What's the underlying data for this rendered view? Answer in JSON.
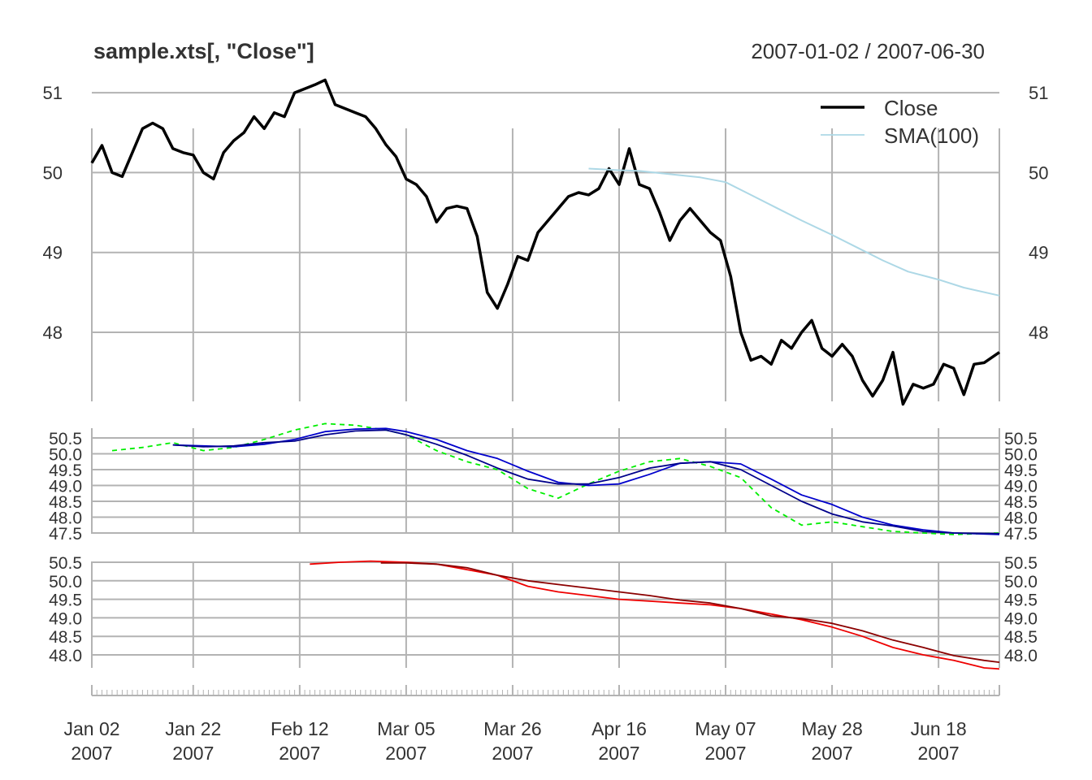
{
  "chart_data": {
    "type": "line",
    "title": "sample.xts[, \"Close\"]",
    "date_range": "2007-01-02 / 2007-06-30",
    "x_ticks": [
      {
        "date": "2007-01-02",
        "label": "Jan 02",
        "year": "2007"
      },
      {
        "date": "2007-01-22",
        "label": "Jan 22",
        "year": "2007"
      },
      {
        "date": "2007-02-12",
        "label": "Feb 12",
        "year": "2007"
      },
      {
        "date": "2007-03-05",
        "label": "Mar 05",
        "year": "2007"
      },
      {
        "date": "2007-03-26",
        "label": "Mar 26",
        "year": "2007"
      },
      {
        "date": "2007-04-16",
        "label": "Apr 16",
        "year": "2007"
      },
      {
        "date": "2007-05-07",
        "label": "May 07",
        "year": "2007"
      },
      {
        "date": "2007-05-28",
        "label": "May 28",
        "year": "2007"
      },
      {
        "date": "2007-06-18",
        "label": "Jun 18",
        "year": "2007"
      }
    ],
    "panels": [
      {
        "name": "main",
        "ylim": [
          47.1,
          51.2
        ],
        "y_ticks": [
          "48",
          "49",
          "50",
          "51"
        ],
        "legend": {
          "position": "top-right",
          "entries": [
            "Close",
            "SMA(100)"
          ]
        },
        "series": [
          {
            "name": "Close",
            "color": "#000000",
            "x": [
              "2007-01-02",
              "2007-01-04",
              "2007-01-06",
              "2007-01-08",
              "2007-01-10",
              "2007-01-12",
              "2007-01-14",
              "2007-01-16",
              "2007-01-18",
              "2007-01-20",
              "2007-01-22",
              "2007-01-24",
              "2007-01-26",
              "2007-01-28",
              "2007-01-30",
              "2007-02-01",
              "2007-02-03",
              "2007-02-05",
              "2007-02-07",
              "2007-02-09",
              "2007-02-11",
              "2007-02-13",
              "2007-02-15",
              "2007-02-17",
              "2007-02-19",
              "2007-02-21",
              "2007-02-23",
              "2007-02-25",
              "2007-02-27",
              "2007-03-01",
              "2007-03-03",
              "2007-03-05",
              "2007-03-07",
              "2007-03-09",
              "2007-03-11",
              "2007-03-13",
              "2007-03-15",
              "2007-03-17",
              "2007-03-19",
              "2007-03-21",
              "2007-03-23",
              "2007-03-25",
              "2007-03-27",
              "2007-03-29",
              "2007-03-31",
              "2007-04-02",
              "2007-04-04",
              "2007-04-06",
              "2007-04-08",
              "2007-04-10",
              "2007-04-12",
              "2007-04-14",
              "2007-04-16",
              "2007-04-18",
              "2007-04-20",
              "2007-04-22",
              "2007-04-24",
              "2007-04-26",
              "2007-04-28",
              "2007-04-30",
              "2007-05-02",
              "2007-05-04",
              "2007-05-06",
              "2007-05-08",
              "2007-05-10",
              "2007-05-12",
              "2007-05-14",
              "2007-05-16",
              "2007-05-18",
              "2007-05-20",
              "2007-05-22",
              "2007-05-24",
              "2007-05-26",
              "2007-05-28",
              "2007-05-30",
              "2007-06-01",
              "2007-06-03",
              "2007-06-05",
              "2007-06-07",
              "2007-06-09",
              "2007-06-11",
              "2007-06-13",
              "2007-06-15",
              "2007-06-17",
              "2007-06-19",
              "2007-06-21",
              "2007-06-23",
              "2007-06-25",
              "2007-06-27",
              "2007-06-30"
            ],
            "values": [
              50.12,
              50.34,
              50.0,
              49.95,
              50.25,
              50.55,
              50.62,
              50.55,
              50.3,
              50.25,
              50.22,
              50.0,
              49.92,
              50.25,
              50.4,
              50.5,
              50.7,
              50.55,
              50.75,
              50.7,
              51.0,
              51.05,
              51.1,
              51.16,
              50.85,
              50.8,
              50.75,
              50.7,
              50.55,
              50.35,
              50.2,
              49.92,
              49.85,
              49.7,
              49.38,
              49.55,
              49.58,
              49.55,
              49.2,
              48.5,
              48.3,
              48.6,
              48.95,
              48.9,
              49.25,
              49.4,
              49.55,
              49.7,
              49.75,
              49.72,
              49.8,
              50.05,
              49.85,
              50.3,
              49.85,
              49.8,
              49.5,
              49.15,
              49.4,
              49.55,
              49.4,
              49.25,
              49.15,
              48.7,
              48.0,
              47.65,
              47.7,
              47.6,
              47.9,
              47.8,
              48.0,
              48.15,
              47.8,
              47.7,
              47.85,
              47.7,
              47.4,
              47.2,
              47.4,
              47.75,
              47.1,
              47.35,
              47.3,
              47.35,
              47.6,
              47.55,
              47.22,
              47.6,
              47.62,
              47.75
            ]
          },
          {
            "name": "SMA(100)",
            "color": "#add8e6",
            "x": [
              "2007-04-10",
              "2007-04-16",
              "2007-04-20",
              "2007-04-26",
              "2007-05-02",
              "2007-05-07",
              "2007-05-12",
              "2007-05-17",
              "2007-05-22",
              "2007-05-28",
              "2007-06-02",
              "2007-06-07",
              "2007-06-12",
              "2007-06-18",
              "2007-06-23",
              "2007-06-30"
            ],
            "values": [
              50.05,
              50.03,
              50.02,
              49.98,
              49.94,
              49.88,
              49.72,
              49.56,
              49.4,
              49.22,
              49.06,
              48.9,
              48.76,
              48.66,
              48.56,
              48.46
            ]
          }
        ]
      },
      {
        "name": "panel2",
        "ylim": [
          47.4,
          50.8
        ],
        "y_ticks": [
          "47.5",
          "48.0",
          "48.5",
          "49.0",
          "49.5",
          "50.0",
          "50.5"
        ],
        "series": [
          {
            "name": "green dashed",
            "color": "#00ee00",
            "dashed": true,
            "x": [
              "2007-01-06",
              "2007-01-12",
              "2007-01-18",
              "2007-01-24",
              "2007-01-30",
              "2007-02-05",
              "2007-02-11",
              "2007-02-17",
              "2007-02-23",
              "2007-03-01",
              "2007-03-05",
              "2007-03-11",
              "2007-03-17",
              "2007-03-23",
              "2007-03-29",
              "2007-04-04",
              "2007-04-10",
              "2007-04-16",
              "2007-04-22",
              "2007-04-28",
              "2007-05-04",
              "2007-05-10",
              "2007-05-16",
              "2007-05-22",
              "2007-05-28",
              "2007-06-03",
              "2007-06-09",
              "2007-06-15",
              "2007-06-21",
              "2007-06-30"
            ],
            "values": [
              50.1,
              50.2,
              50.35,
              50.1,
              50.2,
              50.45,
              50.75,
              50.95,
              50.9,
              50.75,
              50.6,
              50.1,
              49.75,
              49.5,
              48.9,
              48.6,
              49.05,
              49.45,
              49.75,
              49.85,
              49.6,
              49.25,
              48.3,
              47.75,
              47.85,
              47.7,
              47.55,
              47.5,
              47.45,
              47.5
            ]
          },
          {
            "name": "blue",
            "color": "#0000cc",
            "x": [
              "2007-01-18",
              "2007-01-24",
              "2007-01-30",
              "2007-02-05",
              "2007-02-11",
              "2007-02-17",
              "2007-02-23",
              "2007-03-01",
              "2007-03-05",
              "2007-03-11",
              "2007-03-17",
              "2007-03-23",
              "2007-03-29",
              "2007-04-04",
              "2007-04-10",
              "2007-04-16",
              "2007-04-22",
              "2007-04-28",
              "2007-05-04",
              "2007-05-10",
              "2007-05-16",
              "2007-05-22",
              "2007-05-28",
              "2007-06-03",
              "2007-06-09",
              "2007-06-15",
              "2007-06-21",
              "2007-06-30"
            ],
            "values": [
              50.28,
              50.25,
              50.22,
              50.3,
              50.45,
              50.7,
              50.78,
              50.8,
              50.7,
              50.45,
              50.1,
              49.85,
              49.45,
              49.1,
              49.0,
              49.05,
              49.35,
              49.7,
              49.75,
              49.68,
              49.2,
              48.7,
              48.4,
              48.0,
              47.75,
              47.6,
              47.5,
              47.45
            ]
          },
          {
            "name": "dark blue",
            "color": "#00008b",
            "x": [
              "2007-01-18",
              "2007-01-24",
              "2007-01-30",
              "2007-02-05",
              "2007-02-11",
              "2007-02-17",
              "2007-02-23",
              "2007-03-01",
              "2007-03-05",
              "2007-03-11",
              "2007-03-17",
              "2007-03-23",
              "2007-03-29",
              "2007-04-04",
              "2007-04-10",
              "2007-04-16",
              "2007-04-22",
              "2007-04-28",
              "2007-05-04",
              "2007-05-10",
              "2007-05-16",
              "2007-05-22",
              "2007-05-28",
              "2007-06-03",
              "2007-06-09",
              "2007-06-15",
              "2007-06-21",
              "2007-06-30"
            ],
            "values": [
              50.28,
              50.22,
              50.25,
              50.35,
              50.4,
              50.6,
              50.72,
              50.75,
              50.6,
              50.3,
              49.95,
              49.55,
              49.2,
              49.05,
              49.05,
              49.25,
              49.55,
              49.7,
              49.75,
              49.5,
              49.0,
              48.5,
              48.1,
              47.85,
              47.72,
              47.55,
              47.5,
              47.48
            ]
          }
        ]
      },
      {
        "name": "panel3",
        "ylim": [
          47.6,
          50.7
        ],
        "y_ticks": [
          "48.0",
          "48.5",
          "49.0",
          "49.5",
          "50.0",
          "50.5"
        ],
        "series": [
          {
            "name": "red",
            "color": "#ee0000",
            "x": [
              "2007-02-14",
              "2007-02-20",
              "2007-02-26",
              "2007-03-05",
              "2007-03-11",
              "2007-03-17",
              "2007-03-23",
              "2007-03-29",
              "2007-04-04",
              "2007-04-10",
              "2007-04-16",
              "2007-04-22",
              "2007-04-28",
              "2007-05-04",
              "2007-05-10",
              "2007-05-16",
              "2007-05-22",
              "2007-05-28",
              "2007-06-03",
              "2007-06-09",
              "2007-06-15",
              "2007-06-21",
              "2007-06-27",
              "2007-06-30"
            ],
            "values": [
              50.45,
              50.5,
              50.53,
              50.5,
              50.45,
              50.3,
              50.15,
              49.85,
              49.7,
              49.6,
              49.5,
              49.45,
              49.4,
              49.35,
              49.25,
              49.1,
              48.95,
              48.75,
              48.5,
              48.2,
              48.0,
              47.85,
              47.65,
              47.62
            ]
          },
          {
            "name": "dark red",
            "color": "#8b0000",
            "x": [
              "2007-02-28",
              "2007-03-05",
              "2007-03-11",
              "2007-03-17",
              "2007-03-23",
              "2007-03-29",
              "2007-04-04",
              "2007-04-10",
              "2007-04-16",
              "2007-04-22",
              "2007-04-28",
              "2007-05-04",
              "2007-05-10",
              "2007-05-16",
              "2007-05-22",
              "2007-05-28",
              "2007-06-03",
              "2007-06-09",
              "2007-06-15",
              "2007-06-21",
              "2007-06-27",
              "2007-06-30"
            ],
            "values": [
              50.48,
              50.48,
              50.45,
              50.35,
              50.15,
              50.0,
              49.9,
              49.8,
              49.7,
              49.6,
              49.48,
              49.4,
              49.25,
              49.05,
              48.98,
              48.85,
              48.65,
              48.4,
              48.2,
              47.98,
              47.85,
              47.8
            ]
          }
        ]
      }
    ]
  }
}
